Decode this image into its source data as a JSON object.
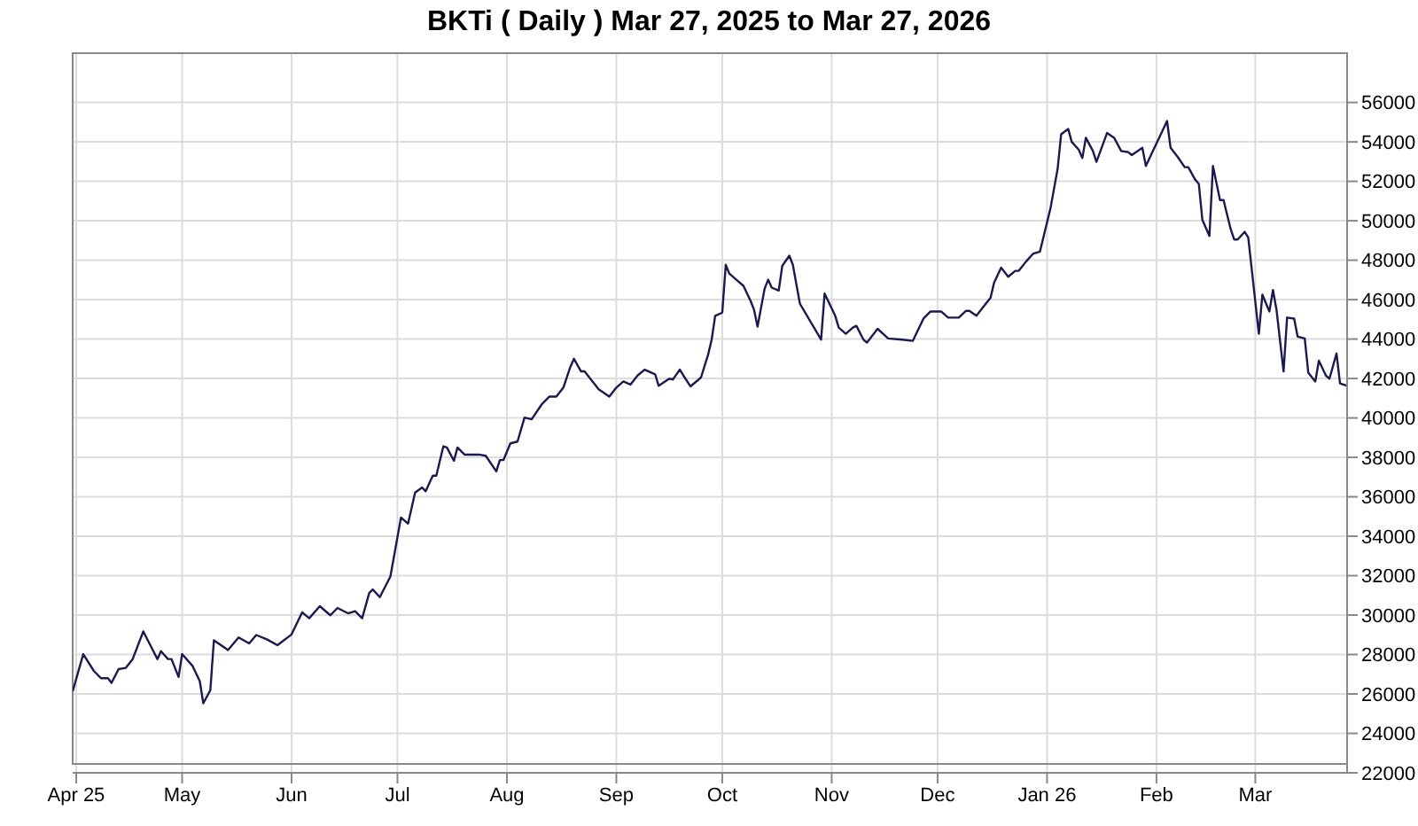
{
  "chart_data": {
    "type": "line",
    "title": "BKTi ( Daily ) Mar 27, 2025 to Mar 27, 2026",
    "x": [
      "2025-03-31",
      "2025-04-03",
      "2025-04-06",
      "2025-04-08",
      "2025-04-10",
      "2025-04-11",
      "2025-04-13",
      "2025-04-15",
      "2025-04-17",
      "2025-04-20",
      "2025-04-22",
      "2025-04-24",
      "2025-04-25",
      "2025-04-27",
      "2025-04-28",
      "2025-04-30",
      "2025-05-01",
      "2025-05-04",
      "2025-05-06",
      "2025-05-07",
      "2025-05-09",
      "2025-05-10",
      "2025-05-14",
      "2025-05-17",
      "2025-05-20",
      "2025-05-22",
      "2025-05-25",
      "2025-05-28",
      "2025-06-01",
      "2025-06-04",
      "2025-06-06",
      "2025-06-09",
      "2025-06-12",
      "2025-06-14",
      "2025-06-17",
      "2025-06-19",
      "2025-06-21",
      "2025-06-23",
      "2025-06-24",
      "2025-06-26",
      "2025-06-29",
      "2025-07-02",
      "2025-07-04",
      "2025-07-06",
      "2025-07-08",
      "2025-07-09",
      "2025-07-11",
      "2025-07-12",
      "2025-07-14",
      "2025-07-15",
      "2025-07-17",
      "2025-07-18",
      "2025-07-20",
      "2025-07-24",
      "2025-07-26",
      "2025-07-29",
      "2025-07-30",
      "2025-07-31",
      "2025-08-02",
      "2025-08-04",
      "2025-08-05",
      "2025-08-06",
      "2025-08-08",
      "2025-08-11",
      "2025-08-13",
      "2025-08-15",
      "2025-08-17",
      "2025-08-19",
      "2025-08-20",
      "2025-08-22",
      "2025-08-23",
      "2025-08-27",
      "2025-08-30",
      "2025-09-01",
      "2025-09-03",
      "2025-09-05",
      "2025-09-07",
      "2025-09-09",
      "2025-09-12",
      "2025-09-13",
      "2025-09-16",
      "2025-09-17",
      "2025-09-19",
      "2025-09-20",
      "2025-09-22",
      "2025-09-24",
      "2025-09-25",
      "2025-09-27",
      "2025-09-28",
      "2025-09-29",
      "2025-10-01",
      "2025-10-02",
      "2025-10-03",
      "2025-10-05",
      "2025-10-07",
      "2025-10-09",
      "2025-10-10",
      "2025-10-11",
      "2025-10-13",
      "2025-10-14",
      "2025-10-15",
      "2025-10-17",
      "2025-10-18",
      "2025-10-20",
      "2025-10-21",
      "2025-10-23",
      "2025-10-24",
      "2025-10-26",
      "2025-10-27",
      "2025-10-29",
      "2025-10-30",
      "2025-11-02",
      "2025-11-03",
      "2025-11-05",
      "2025-11-07",
      "2025-11-08",
      "2025-11-10",
      "2025-11-11",
      "2025-11-14",
      "2025-11-17",
      "2025-11-21",
      "2025-11-24",
      "2025-11-27",
      "2025-11-29",
      "2025-12-02",
      "2025-12-04",
      "2025-12-07",
      "2025-12-09",
      "2025-12-10",
      "2025-12-12",
      "2025-12-14",
      "2025-12-16",
      "2025-12-17",
      "2025-12-19",
      "2025-12-21",
      "2025-12-23",
      "2025-12-24",
      "2025-12-26",
      "2025-12-28",
      "2025-12-30",
      "2026-01-02",
      "2026-01-04",
      "2026-01-05",
      "2026-01-07",
      "2026-01-08",
      "2026-01-10",
      "2026-01-11",
      "2026-01-12",
      "2026-01-14",
      "2026-01-15",
      "2026-01-18",
      "2026-01-20",
      "2026-01-22",
      "2026-01-24",
      "2026-01-25",
      "2026-01-28",
      "2026-01-29",
      "2026-01-31",
      "2026-02-02",
      "2026-02-04",
      "2026-02-05",
      "2026-02-07",
      "2026-02-09",
      "2026-02-10",
      "2026-02-12",
      "2026-02-13",
      "2026-02-14",
      "2026-02-16",
      "2026-02-17",
      "2026-02-19",
      "2026-02-20",
      "2026-02-22",
      "2026-02-23",
      "2026-02-24",
      "2026-02-26",
      "2026-02-27",
      "2026-03-02",
      "2026-03-03",
      "2026-03-05",
      "2026-03-06",
      "2026-03-07",
      "2026-03-09",
      "2026-03-10",
      "2026-03-12",
      "2026-03-13",
      "2026-03-15",
      "2026-03-16",
      "2026-03-18",
      "2026-03-19",
      "2026-03-21",
      "2026-03-22",
      "2026-03-24",
      "2026-03-25",
      "2026-03-27"
    ],
    "series": [
      {
        "color": "#1a1a4e",
        "values": [
          26130,
          28020,
          27170,
          26800,
          26800,
          26560,
          27260,
          27320,
          27770,
          29170,
          28470,
          27770,
          28170,
          27770,
          27770,
          26860,
          28020,
          27410,
          26650,
          25530,
          26190,
          28720,
          28230,
          28870,
          28560,
          28990,
          28770,
          28470,
          29020,
          30140,
          29840,
          30450,
          29990,
          30360,
          30090,
          30200,
          29840,
          31120,
          31300,
          30910,
          31960,
          34950,
          34640,
          36220,
          36470,
          36280,
          37070,
          37070,
          38560,
          38500,
          37830,
          38500,
          38140,
          38140,
          38080,
          37290,
          37860,
          37860,
          38710,
          38800,
          39410,
          40020,
          39930,
          40720,
          41080,
          41080,
          41540,
          42600,
          43000,
          42360,
          42360,
          41450,
          41080,
          41540,
          41850,
          41690,
          42150,
          42450,
          42210,
          41630,
          41990,
          41950,
          42450,
          42150,
          41600,
          41900,
          42060,
          43210,
          43970,
          45180,
          45340,
          47770,
          47320,
          47010,
          46700,
          45950,
          45490,
          44630,
          46550,
          47010,
          46610,
          46460,
          47710,
          48230,
          47770,
          45790,
          45490,
          44880,
          44580,
          43970,
          46310,
          45180,
          44580,
          44270,
          44580,
          44670,
          43970,
          43820,
          44520,
          44030,
          43970,
          43910,
          45040,
          45400,
          45400,
          45090,
          45090,
          45430,
          45430,
          45180,
          45640,
          46090,
          46860,
          47620,
          47160,
          47460,
          47460,
          47920,
          48320,
          48440,
          50650,
          52630,
          54390,
          54660,
          54000,
          53600,
          53180,
          54210,
          53540,
          52990,
          54450,
          54210,
          53540,
          53480,
          53330,
          53700,
          52780,
          53540,
          54300,
          55060,
          53700,
          53240,
          52720,
          52720,
          52080,
          51870,
          50050,
          49230,
          52780,
          51050,
          51050,
          49590,
          49050,
          49050,
          49440,
          49140,
          44270,
          46250,
          45400,
          46490,
          45490,
          42360,
          45090,
          45040,
          44120,
          44030,
          42300,
          41850,
          42900,
          42150,
          41990,
          43270,
          41750,
          41630
        ]
      }
    ],
    "xlim": [
      "2025-03-31",
      "2026-03-27"
    ],
    "xticks": [
      {
        "value": "2025-04-01",
        "label": "Apr 25"
      },
      {
        "value": "2025-05-01",
        "label": "May"
      },
      {
        "value": "2025-06-01",
        "label": "Jun"
      },
      {
        "value": "2025-07-01",
        "label": "Jul"
      },
      {
        "value": "2025-08-01",
        "label": "Aug"
      },
      {
        "value": "2025-09-01",
        "label": "Sep"
      },
      {
        "value": "2025-10-01",
        "label": "Oct"
      },
      {
        "value": "2025-11-01",
        "label": "Nov"
      },
      {
        "value": "2025-12-01",
        "label": "Dec"
      },
      {
        "value": "2026-01-01",
        "label": "Jan 26"
      },
      {
        "value": "2026-02-01",
        "label": "Feb"
      },
      {
        "value": "2026-03-01",
        "label": "Mar"
      }
    ],
    "ylim": [
      22000,
      58500
    ],
    "yticks": [
      22000,
      24000,
      26000,
      28000,
      30000,
      32000,
      34000,
      36000,
      38000,
      40000,
      42000,
      44000,
      46000,
      48000,
      50000,
      52000,
      54000,
      56000
    ],
    "grid": true,
    "legend": false
  }
}
